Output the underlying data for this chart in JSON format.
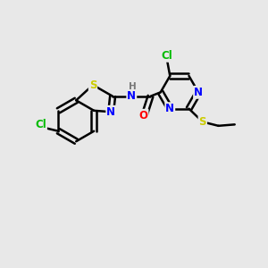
{
  "background_color": "#e8e8e8",
  "bond_color": "#000000",
  "bond_width": 1.8,
  "atom_colors": {
    "C": "#000000",
    "N": "#0000ff",
    "O": "#ff0000",
    "S": "#cccc00",
    "Cl": "#00bb00",
    "H": "#777777"
  },
  "figsize": [
    3.0,
    3.0
  ],
  "dpi": 100
}
